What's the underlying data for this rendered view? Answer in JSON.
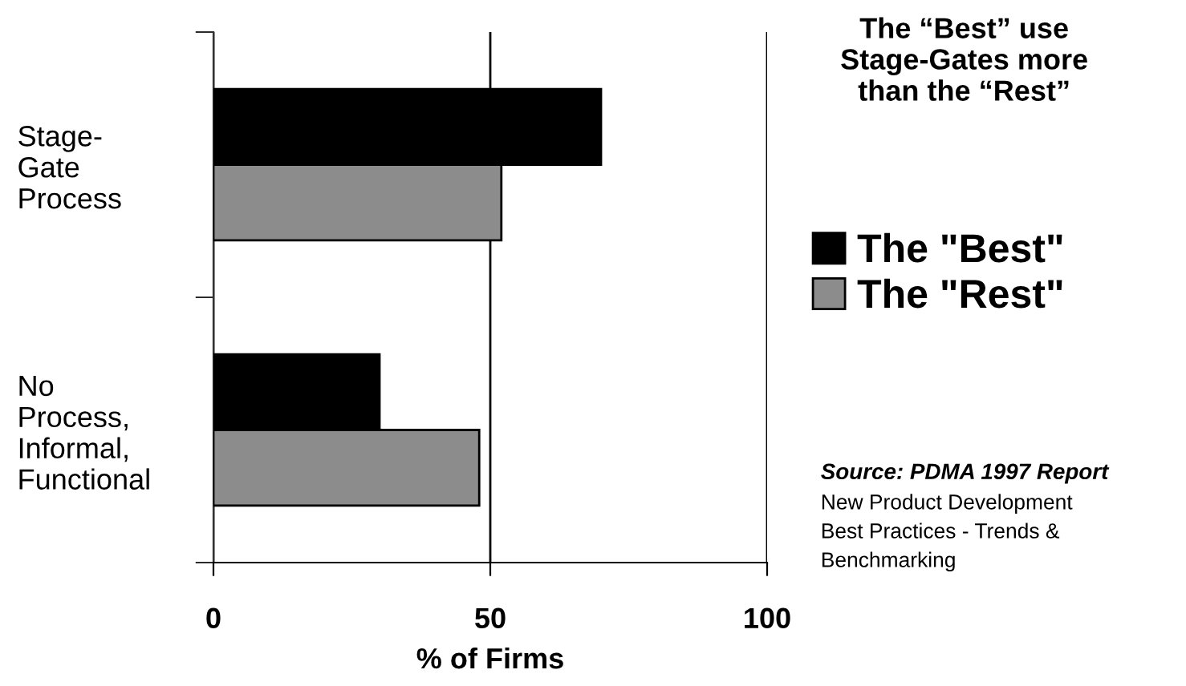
{
  "chart_data": {
    "type": "bar",
    "orientation": "horizontal",
    "title": "The “Best” use\nStage-Gates more\nthan the “Rest”",
    "categories": [
      "Stage-\nGate\nProcess",
      "No\nProcess,\nInformal,\nFunctional"
    ],
    "series": [
      {
        "name": "The \"Best\"",
        "color": "#000000",
        "values": [
          70,
          30
        ]
      },
      {
        "name": "The \"Rest\"",
        "color": "#8c8c8c",
        "values": [
          52,
          48
        ]
      }
    ],
    "xlabel": "% of Firms",
    "xlim": [
      0,
      100
    ],
    "xticks": [
      0,
      50,
      100
    ],
    "grid": "x",
    "legend": "right",
    "annotations": [
      "Source: PDMA 1997 Report",
      "New Product Development\nBest Practices - Trends &\nBenchmarking"
    ]
  }
}
